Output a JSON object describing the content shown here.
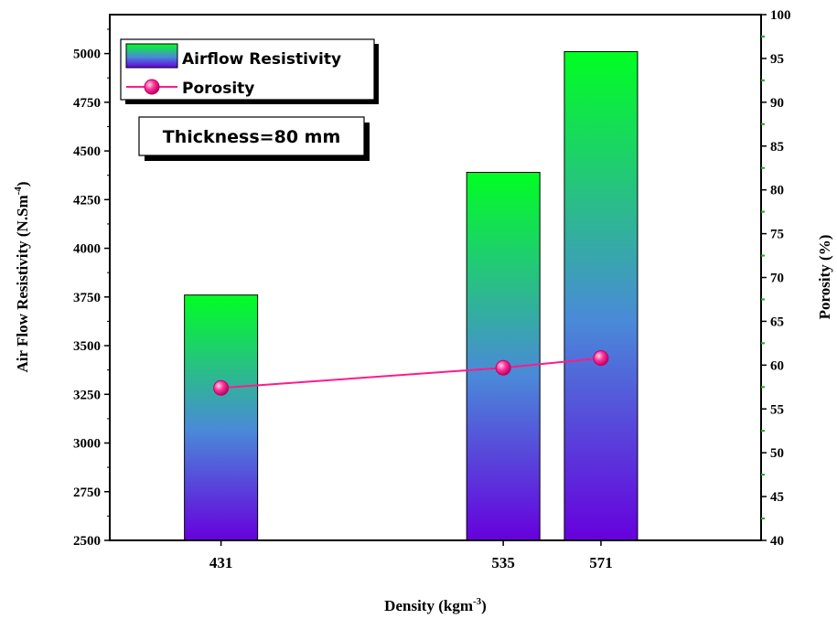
{
  "chart_data": {
    "type": "bar",
    "categories": [
      "431",
      "535",
      "571"
    ],
    "x": [
      431,
      535,
      571
    ],
    "xlim": [
      390,
      630
    ],
    "xlabel": "Density (kgm",
    "xlabel_sup": "-3",
    "xlabel_end": ")",
    "ylabel_left": "Air Flow Resistivity (N.Sm",
    "ylabel_left_sup": "-4",
    "ylabel_left_end": ")",
    "ylim_left": [
      2500,
      5200
    ],
    "yticks_left": [
      2500,
      2750,
      3000,
      3250,
      3500,
      3750,
      4000,
      4250,
      4500,
      4750,
      5000
    ],
    "ylabel_right": "Porosity (%)",
    "ylim_right": [
      40,
      100
    ],
    "yticks_right": [
      40,
      45,
      50,
      55,
      60,
      65,
      70,
      75,
      80,
      85,
      90,
      95,
      100
    ],
    "series": [
      {
        "name": "Airflow Resistivity",
        "type": "bar",
        "axis": "left",
        "values": [
          3760,
          4390,
          5010
        ]
      },
      {
        "name": "Porosity",
        "type": "line",
        "axis": "right",
        "values": [
          57.4,
          59.7,
          60.8
        ]
      }
    ],
    "annotation": "Thickness=80 mm",
    "legend_position": "top-left",
    "grid": false,
    "colors": {
      "bar_top": "#00ff22",
      "bar_mid": "#4a8ad8",
      "bar_bottom": "#6600dd",
      "line": "#ff1a8c",
      "right_ticks": "#22aa22"
    }
  }
}
